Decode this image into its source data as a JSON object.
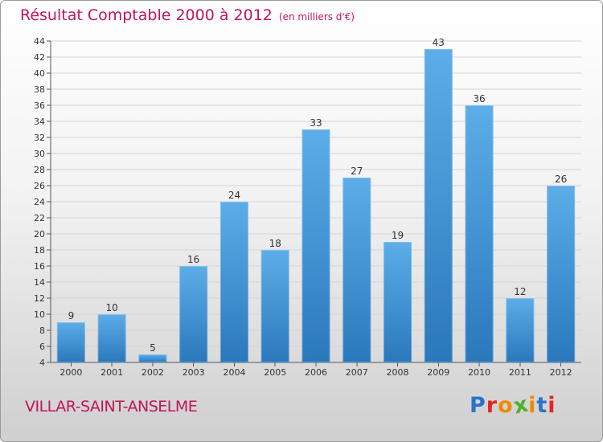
{
  "title": "Résultat Comptable 2000 à 2012",
  "subtitle": "(en milliers d'€)",
  "commune": "VILLAR-SAINT-ANSELME",
  "logo": {
    "text": "Proxiti",
    "letter_colors": [
      "#2a73c9",
      "#e8261f",
      "#f08a00",
      "#52b02f",
      "#f08a00",
      "#2a73c9",
      "#e8261f"
    ]
  },
  "colors": {
    "title": "#c0155a",
    "bar_light": "#5dade8",
    "bar_dark": "#2a78bc",
    "grid": "#d4d4d4"
  },
  "chart_data": {
    "type": "bar",
    "title": "Résultat Comptable 2000 à 2012",
    "subtitle": "(en milliers d'€)",
    "xlabel": "",
    "ylabel": "",
    "categories": [
      "2000",
      "2001",
      "2002",
      "2003",
      "2004",
      "2005",
      "2006",
      "2007",
      "2008",
      "2009",
      "2010",
      "2011",
      "2012"
    ],
    "values": [
      9,
      10,
      5,
      16,
      24,
      18,
      33,
      27,
      19,
      43,
      36,
      12,
      26
    ],
    "ylim": [
      4,
      44
    ],
    "ytick_step": 2,
    "grid": true,
    "legend": "none"
  }
}
